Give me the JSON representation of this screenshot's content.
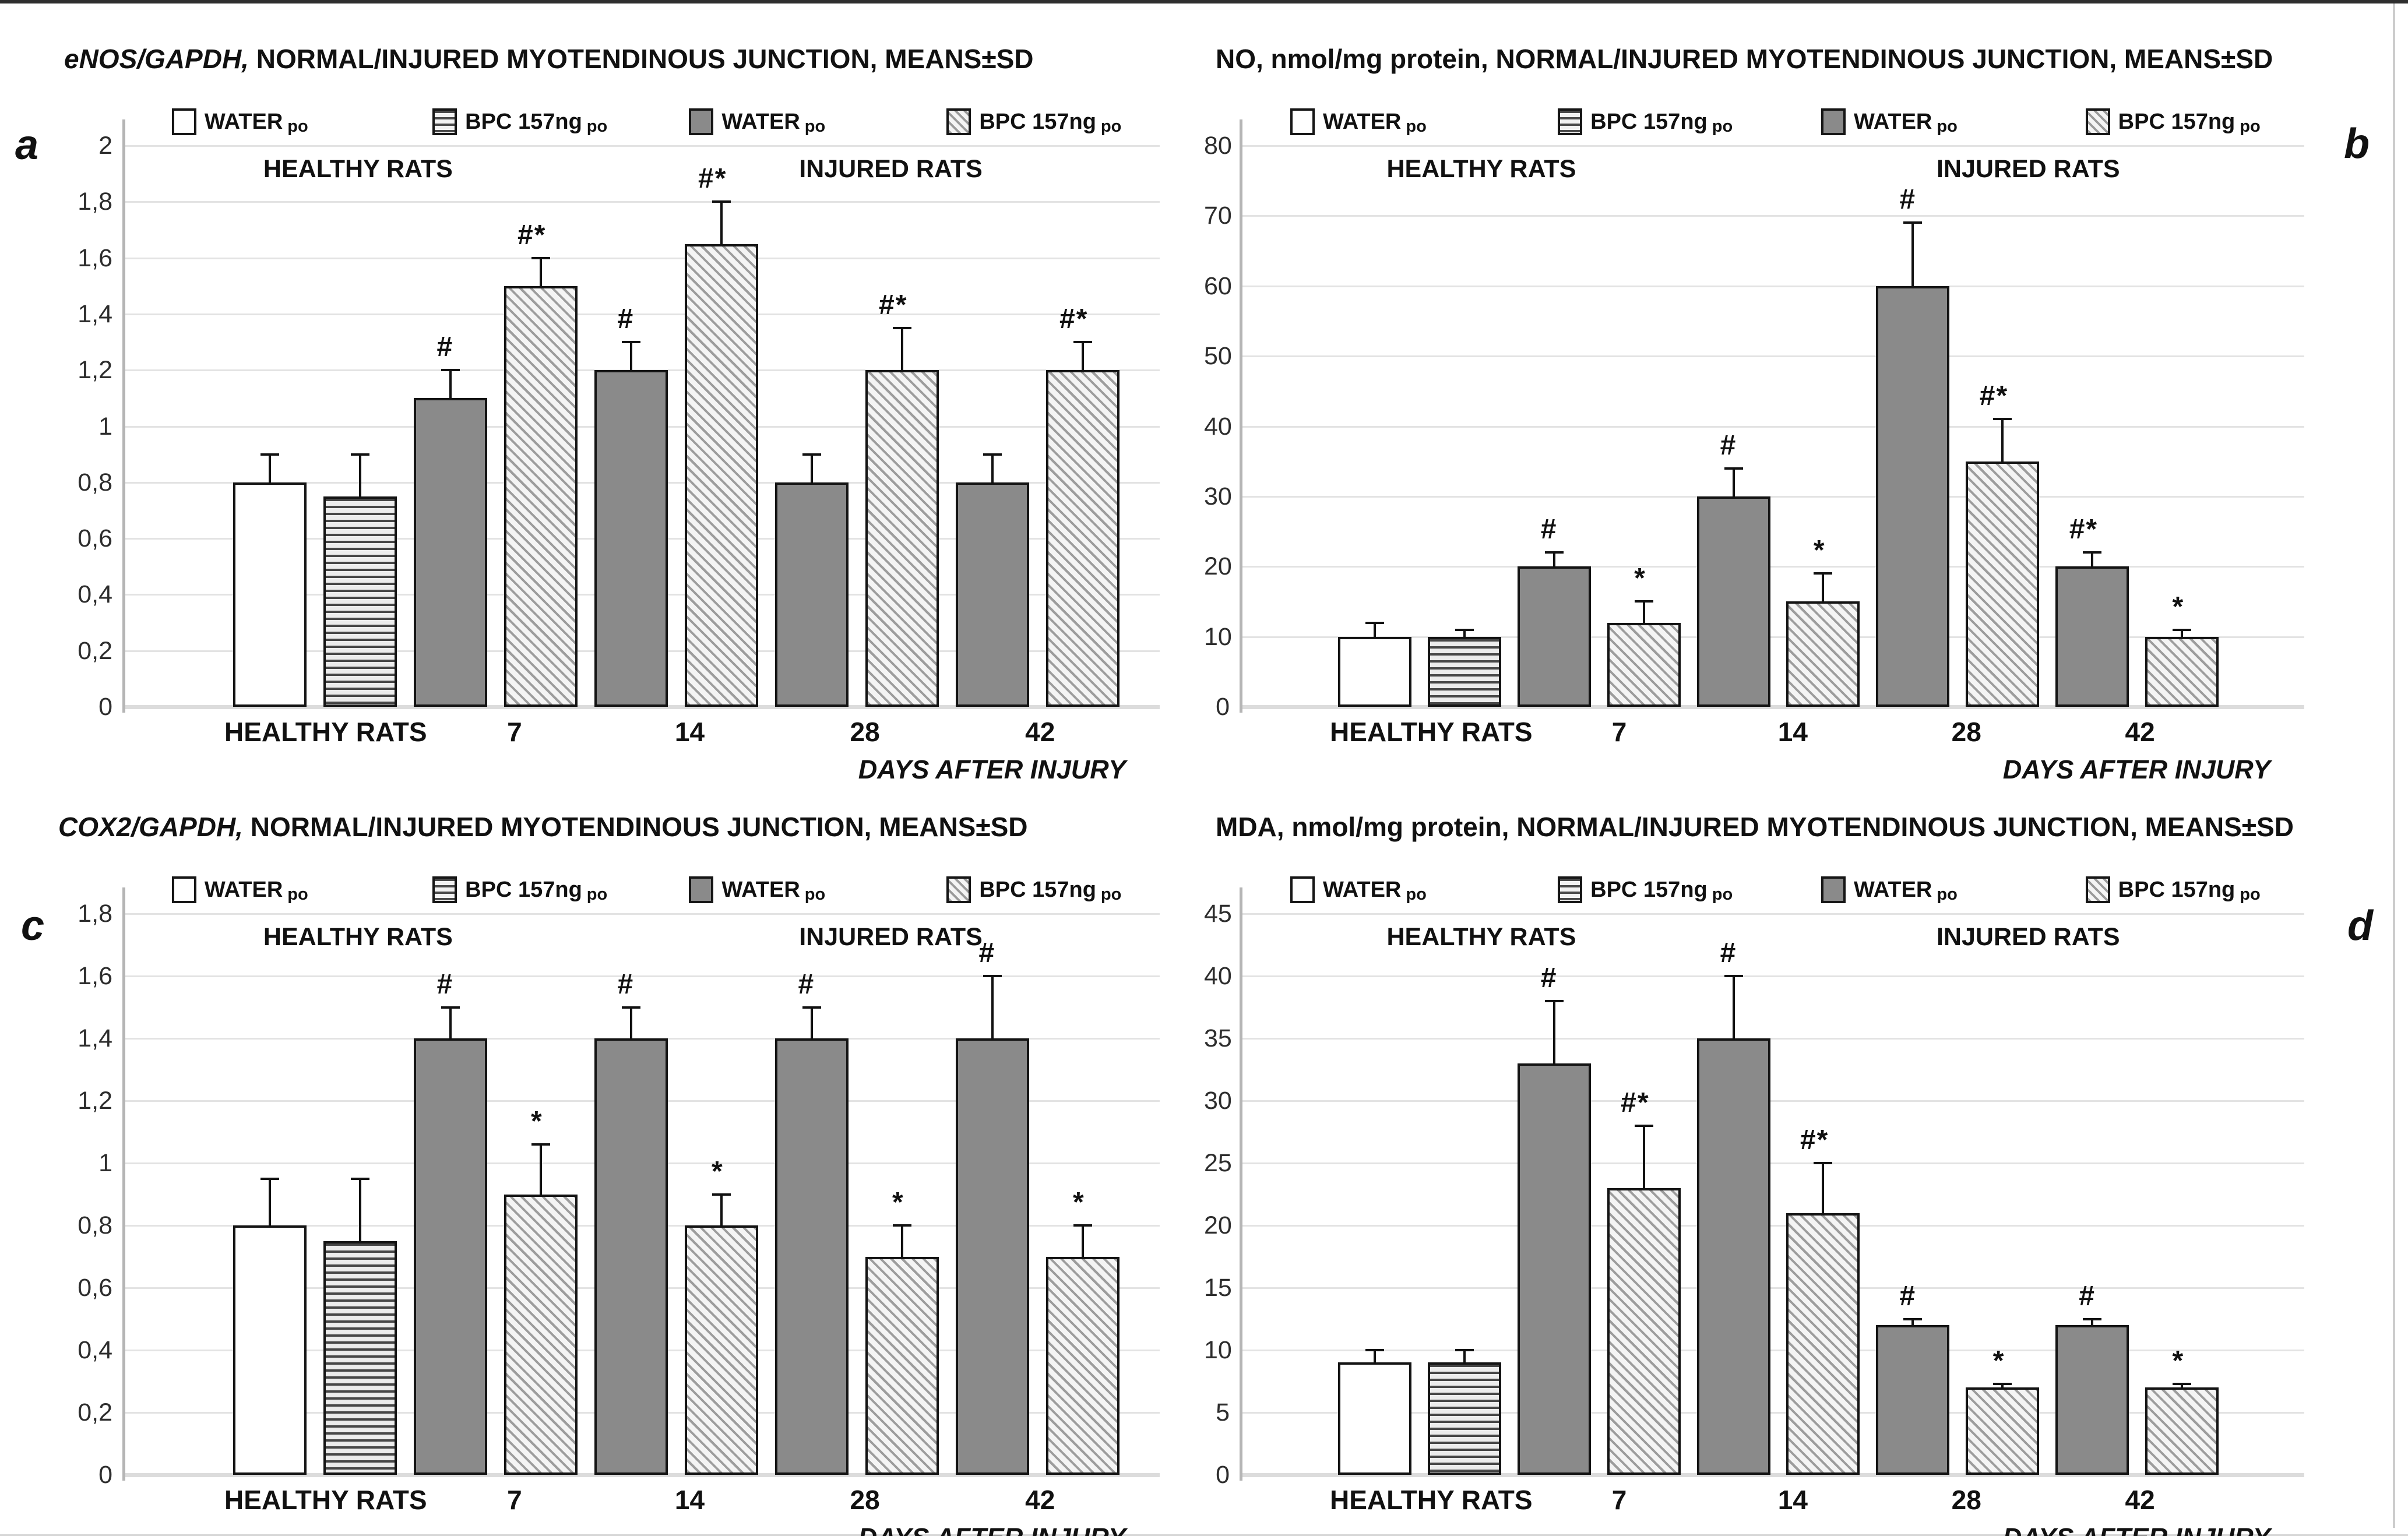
{
  "figure": {
    "panel_labels": [
      "a",
      "b",
      "c",
      "d"
    ],
    "x_axis_caption": "DAYS AFTER INJURY",
    "group_headers": [
      "HEALTHY RATS",
      "INJURED RATS"
    ],
    "legend": [
      {
        "label": "WATER",
        "unit": "po",
        "pattern": "white"
      },
      {
        "label": "BPC 157ng",
        "unit": "po",
        "pattern": "hstripe"
      },
      {
        "label": "WATER",
        "unit": "po",
        "pattern": "solid"
      },
      {
        "label": "BPC 157ng",
        "unit": "po",
        "pattern": "dstripe"
      }
    ],
    "colors": {
      "bar_gray": "#8a8a8a",
      "grid": "#e3e3e3",
      "axis": "#b5b5b5",
      "ink": "#111111"
    }
  },
  "chart_data": [
    {
      "id": "a",
      "type": "bar",
      "title_italic": "eNOS/GAPDH,",
      "title_rest": " NORMAL/INJURED MYOTENDINOUS JUNCTION, MEANS±SD",
      "ymax": 2,
      "ystep": 0.2,
      "grid": true,
      "legend_position": "top",
      "yticks": [
        "0",
        "0,2",
        "0,4",
        "0,6",
        "0,8",
        "1",
        "1,2",
        "1,4",
        "1,6",
        "1,8",
        "2"
      ],
      "categories": [
        "HEALTHY RATS",
        "7",
        "14",
        "28",
        "42"
      ],
      "bars": [
        {
          "group": "HEALTHY RATS",
          "series": "WATER po healthy",
          "value": 0.8,
          "err": 0.1,
          "pattern": "white",
          "mark": ""
        },
        {
          "group": "HEALTHY RATS",
          "series": "BPC 157ng po healthy",
          "value": 0.75,
          "err": 0.15,
          "pattern": "hstripe",
          "mark": ""
        },
        {
          "group": "7",
          "series": "WATER po injured",
          "value": 1.1,
          "err": 0.1,
          "pattern": "solid",
          "mark": "#"
        },
        {
          "group": "7",
          "series": "BPC 157ng po injured",
          "value": 1.5,
          "err": 0.1,
          "pattern": "dstripe",
          "mark": "#*"
        },
        {
          "group": "14",
          "series": "WATER po injured",
          "value": 1.2,
          "err": 0.1,
          "pattern": "solid",
          "mark": "#"
        },
        {
          "group": "14",
          "series": "BPC 157ng po injured",
          "value": 1.65,
          "err": 0.15,
          "pattern": "dstripe",
          "mark": "#*"
        },
        {
          "group": "28",
          "series": "WATER po injured",
          "value": 0.8,
          "err": 0.1,
          "pattern": "solid",
          "mark": ""
        },
        {
          "group": "28",
          "series": "BPC 157ng po injured",
          "value": 1.2,
          "err": 0.15,
          "pattern": "dstripe",
          "mark": "#*"
        },
        {
          "group": "42",
          "series": "WATER po injured",
          "value": 0.8,
          "err": 0.1,
          "pattern": "solid",
          "mark": ""
        },
        {
          "group": "42",
          "series": "BPC 157ng po injured",
          "value": 1.2,
          "err": 0.1,
          "pattern": "dstripe",
          "mark": "#*"
        }
      ]
    },
    {
      "id": "b",
      "type": "bar",
      "title_italic": "",
      "title_rest": "NO, nmol/mg protein, NORMAL/INJURED MYOTENDINOUS JUNCTION, MEANS±SD",
      "ymax": 80,
      "ystep": 10,
      "grid": true,
      "legend_position": "top",
      "yticks": [
        "0",
        "10",
        "20",
        "30",
        "40",
        "50",
        "60",
        "70",
        "80"
      ],
      "categories": [
        "HEALTHY RATS",
        "7",
        "14",
        "28",
        "42"
      ],
      "bars": [
        {
          "group": "HEALTHY RATS",
          "series": "WATER po healthy",
          "value": 10,
          "err": 2,
          "pattern": "white",
          "mark": ""
        },
        {
          "group": "HEALTHY RATS",
          "series": "BPC 157ng po healthy",
          "value": 10,
          "err": 1,
          "pattern": "hstripe",
          "mark": ""
        },
        {
          "group": "7",
          "series": "WATER po injured",
          "value": 20,
          "err": 2,
          "pattern": "solid",
          "mark": "#"
        },
        {
          "group": "7",
          "series": "BPC 157ng po injured",
          "value": 12,
          "err": 3,
          "pattern": "dstripe",
          "mark": "*"
        },
        {
          "group": "14",
          "series": "WATER po injured",
          "value": 30,
          "err": 4,
          "pattern": "solid",
          "mark": "#"
        },
        {
          "group": "14",
          "series": "BPC 157ng po injured",
          "value": 15,
          "err": 4,
          "pattern": "dstripe",
          "mark": "*"
        },
        {
          "group": "28",
          "series": "WATER po injured",
          "value": 60,
          "err": 9,
          "pattern": "solid",
          "mark": "#"
        },
        {
          "group": "28",
          "series": "BPC 157ng po injured",
          "value": 35,
          "err": 6,
          "pattern": "dstripe",
          "mark": "#*"
        },
        {
          "group": "42",
          "series": "WATER po injured",
          "value": 20,
          "err": 2,
          "pattern": "solid",
          "mark": "#*"
        },
        {
          "group": "42",
          "series": "BPC 157ng po injured",
          "value": 10,
          "err": 1,
          "pattern": "dstripe",
          "mark": "*"
        }
      ]
    },
    {
      "id": "c",
      "type": "bar",
      "title_italic": "COX2/GAPDH,",
      "title_rest": " NORMAL/INJURED MYOTENDINOUS JUNCTION, MEANS±SD",
      "ymax": 1.8,
      "ystep": 0.2,
      "grid": true,
      "legend_position": "top",
      "yticks": [
        "0",
        "0,2",
        "0,4",
        "0,6",
        "0,8",
        "1",
        "1,2",
        "1,4",
        "1,6",
        "1,8"
      ],
      "categories": [
        "HEALTHY RATS",
        "7",
        "14",
        "28",
        "42"
      ],
      "bars": [
        {
          "group": "HEALTHY RATS",
          "series": "WATER po healthy",
          "value": 0.8,
          "err": 0.15,
          "pattern": "white",
          "mark": ""
        },
        {
          "group": "HEALTHY RATS",
          "series": "BPC 157ng po healthy",
          "value": 0.75,
          "err": 0.2,
          "pattern": "hstripe",
          "mark": ""
        },
        {
          "group": "7",
          "series": "WATER po injured",
          "value": 1.4,
          "err": 0.1,
          "pattern": "solid",
          "mark": "#"
        },
        {
          "group": "7",
          "series": "BPC 157ng po injured",
          "value": 0.9,
          "err": 0.16,
          "pattern": "dstripe",
          "mark": "*"
        },
        {
          "group": "14",
          "series": "WATER po injured",
          "value": 1.4,
          "err": 0.1,
          "pattern": "solid",
          "mark": "#"
        },
        {
          "group": "14",
          "series": "BPC 157ng po injured",
          "value": 0.8,
          "err": 0.1,
          "pattern": "dstripe",
          "mark": "*"
        },
        {
          "group": "28",
          "series": "WATER po injured",
          "value": 1.4,
          "err": 0.1,
          "pattern": "solid",
          "mark": "#"
        },
        {
          "group": "28",
          "series": "BPC 157ng po injured",
          "value": 0.7,
          "err": 0.1,
          "pattern": "dstripe",
          "mark": "*"
        },
        {
          "group": "42",
          "series": "WATER po injured",
          "value": 1.4,
          "err": 0.2,
          "pattern": "solid",
          "mark": "#"
        },
        {
          "group": "42",
          "series": "BPC 157ng po injured",
          "value": 0.7,
          "err": 0.1,
          "pattern": "dstripe",
          "mark": "*"
        }
      ]
    },
    {
      "id": "d",
      "type": "bar",
      "title_italic": "",
      "title_rest": "MDA, nmol/mg protein, NORMAL/INJURED MYOTENDINOUS JUNCTION, MEANS±SD",
      "ymax": 45,
      "ystep": 5,
      "grid": true,
      "legend_position": "top",
      "yticks": [
        "0",
        "5",
        "10",
        "15",
        "20",
        "25",
        "30",
        "35",
        "40",
        "45"
      ],
      "categories": [
        "HEALTHY RATS",
        "7",
        "14",
        "28",
        "42"
      ],
      "bars": [
        {
          "group": "HEALTHY RATS",
          "series": "WATER po healthy",
          "value": 9,
          "err": 1,
          "pattern": "white",
          "mark": ""
        },
        {
          "group": "HEALTHY RATS",
          "series": "BPC 157ng po healthy",
          "value": 9,
          "err": 1,
          "pattern": "hstripe",
          "mark": ""
        },
        {
          "group": "7",
          "series": "WATER po injured",
          "value": 33,
          "err": 5,
          "pattern": "solid",
          "mark": "#"
        },
        {
          "group": "7",
          "series": "BPC 157ng po injured",
          "value": 23,
          "err": 5,
          "pattern": "dstripe",
          "mark": "#*"
        },
        {
          "group": "14",
          "series": "WATER po injured",
          "value": 35,
          "err": 5,
          "pattern": "solid",
          "mark": "#"
        },
        {
          "group": "14",
          "series": "BPC 157ng po injured",
          "value": 21,
          "err": 4,
          "pattern": "dstripe",
          "mark": "#*"
        },
        {
          "group": "28",
          "series": "WATER po injured",
          "value": 12,
          "err": 0.5,
          "pattern": "solid",
          "mark": "#"
        },
        {
          "group": "28",
          "series": "BPC 157ng po injured",
          "value": 7,
          "err": 0.3,
          "pattern": "dstripe",
          "mark": "*"
        },
        {
          "group": "42",
          "series": "WATER po injured",
          "value": 12,
          "err": 0.5,
          "pattern": "solid",
          "mark": "#"
        },
        {
          "group": "42",
          "series": "BPC 157ng po injured",
          "value": 7,
          "err": 0.3,
          "pattern": "dstripe",
          "mark": "*"
        }
      ]
    }
  ]
}
